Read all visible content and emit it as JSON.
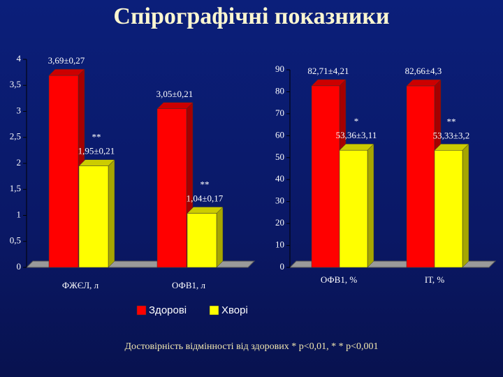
{
  "title": "Спірографічні показники",
  "footnote": "Достовірність відмінності від здорових * p<0,01, * * p<0,001",
  "chart_data": [
    {
      "type": "bar3d",
      "categories": [
        "ФЖЄЛ, л",
        "ОФВ1, л"
      ],
      "series": [
        {
          "name": "Здорові",
          "color": "#ff0000",
          "values": [
            3.69,
            3.05
          ],
          "value_labels": [
            "3,69±0,27",
            "3,05±0,21"
          ]
        },
        {
          "name": "Хворі",
          "color": "#ffff00",
          "values": [
            1.95,
            1.04
          ],
          "value_labels": [
            "1,95±0,21",
            "1,04±0,17"
          ],
          "annotations": [
            "**",
            "**"
          ]
        }
      ],
      "ylim": [
        0,
        4
      ],
      "yticks": [
        0,
        {
          "value": 0.5,
          "label": "0,5"
        },
        1,
        {
          "value": 1.5,
          "label": "1,5"
        },
        2,
        {
          "value": 2.5,
          "label": "2,5"
        },
        3,
        {
          "value": 3.5,
          "label": "3,5"
        },
        4
      ]
    },
    {
      "type": "bar3d",
      "categories": [
        "ОФВ1, %",
        "ІТ, %"
      ],
      "series": [
        {
          "color": "#ff0000",
          "values": [
            82.71,
            82.66
          ],
          "value_labels": [
            "82,71±4,21",
            "82,66±4,3"
          ]
        },
        {
          "color": "#ffff00",
          "values": [
            53.36,
            53.33
          ],
          "value_labels": [
            "53,36±3,11",
            "53,33±3,2"
          ],
          "annotations": [
            "*",
            "**"
          ]
        }
      ],
      "ylim": [
        0,
        90
      ],
      "yticks": [
        0,
        10,
        20,
        30,
        40,
        50,
        60,
        70,
        80,
        90
      ]
    }
  ]
}
